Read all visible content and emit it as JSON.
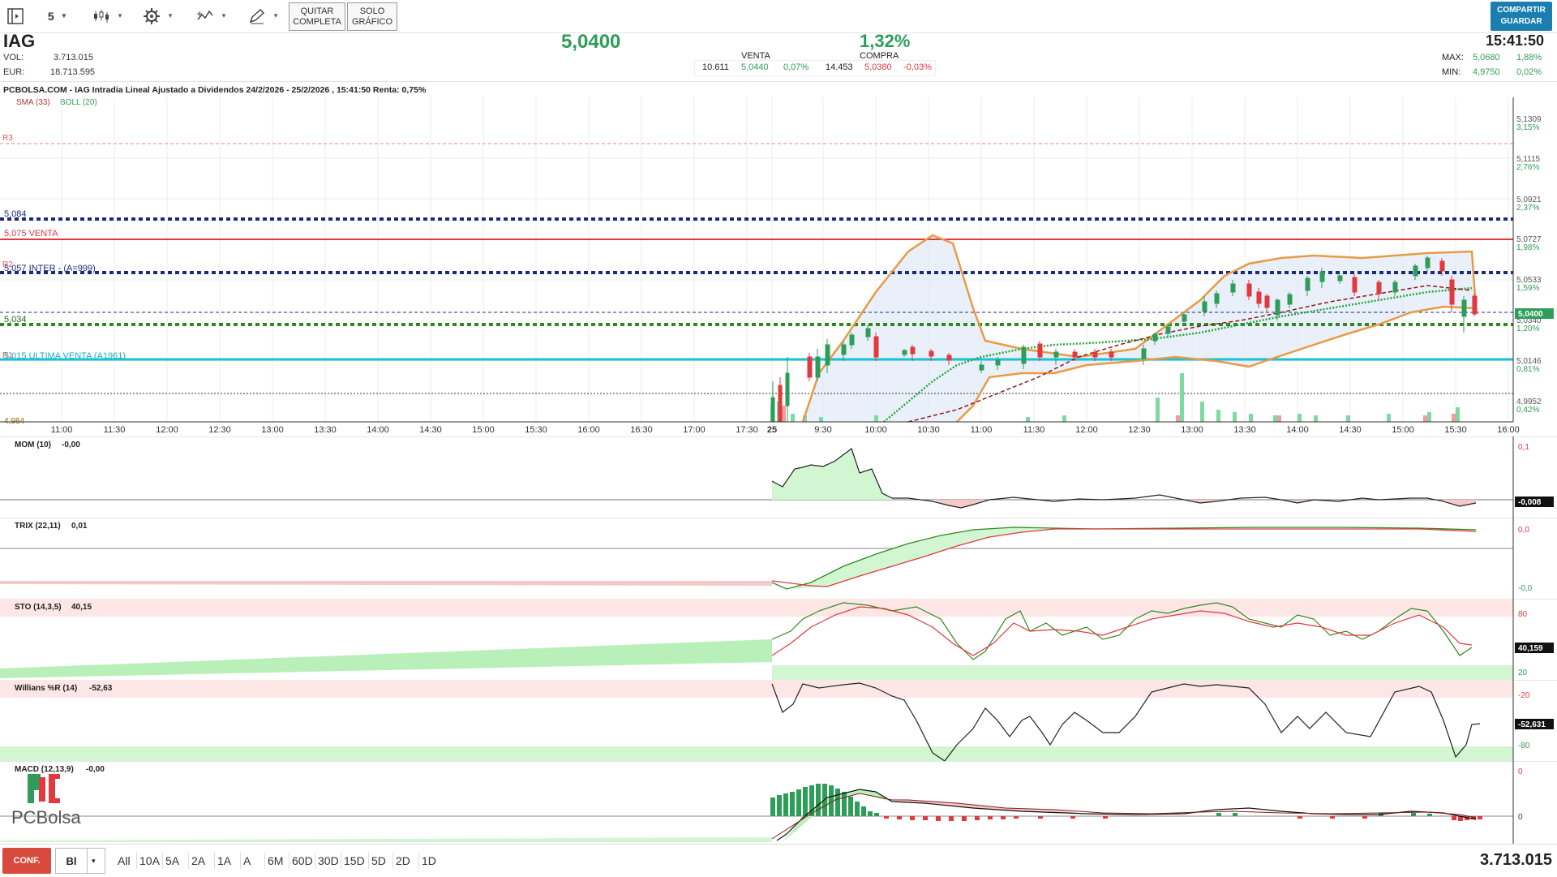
{
  "toolbar": {
    "interval": "5",
    "quit_label": "QUITAR COMPLETA",
    "only_chart_label": "SOLO GRÁFICO",
    "share_label": "COMPARTIR",
    "save_label": "GUARDAR"
  },
  "quote": {
    "ticker": "IAG",
    "vol_label": "VOL:",
    "vol_value": "3.713.015",
    "eur_label": "EUR:",
    "eur_value": "18.713.595",
    "last_price": "5,0400",
    "change_pct": "1,32%",
    "sell_label": "VENTA",
    "sell_qty": "10.611",
    "sell_price": "5,0440",
    "sell_pct": "0,07%",
    "buy_label": "COMPRA",
    "buy_qty": "14.453",
    "buy_price": "5,0380",
    "buy_pct": "-0,03%",
    "time": "15:41:50",
    "max_label": "MAX:",
    "max_value": "5,0680",
    "max_pct": "1,88%",
    "min_label": "MIN:",
    "min_value": "4,9750",
    "min_pct": "0,02%"
  },
  "chart": {
    "title": "PCBOLSA.COM - IAG Intradia Lineal Ajustado a Dividendos 24/2/2026 - 25/2/2026 , 15:41:50 Renta: 0,75%",
    "legend_sma": "SMA (33)",
    "legend_boll": "BOLL (20)",
    "levels": {
      "r3": "R3",
      "r2": "R2",
      "r1": "R1",
      "l5084": "5,084",
      "venta": "5,075   VENTA",
      "inter": "5,057     INTER - (A=999)",
      "l5034": "5,034",
      "ultima": "5,015   ULTIMA VENTA   (A1961)",
      "l4984": "4,984"
    },
    "current_price_tag": "5,0400",
    "y_ticks": [
      {
        "v": "5,1309",
        "p": "3,15%"
      },
      {
        "v": "5,1115",
        "p": "2,76%"
      },
      {
        "v": "5,0921",
        "p": "2,37%"
      },
      {
        "v": "5,0727",
        "p": "1,98%"
      },
      {
        "v": "5,0533",
        "p": "1,59%"
      },
      {
        "v": "5,0340",
        "p": "1,20%"
      },
      {
        "v": "5,0146",
        "p": "0,81%"
      },
      {
        "v": "4,9952",
        "p": "0,42%"
      }
    ],
    "x_ticks": [
      "11:00",
      "11:30",
      "12:00",
      "12:30",
      "13:00",
      "13:30",
      "14:00",
      "14:30",
      "15:00",
      "15:30",
      "16:00",
      "16:30",
      "17:00",
      "17:30",
      "25",
      "9:30",
      "10:00",
      "10:30",
      "11:00",
      "11:30",
      "12:00",
      "12:30",
      "13:00",
      "13:30",
      "14:00",
      "14:30",
      "15:00",
      "15:30",
      "16:00"
    ]
  },
  "indicators": {
    "mom": {
      "label": "MOM (10)",
      "value": "-0,00",
      "tick_top": "0,1",
      "tag": "-0,008"
    },
    "trix": {
      "label": "TRIX (22,11)",
      "value": "0,01",
      "tick_top": "0,0",
      "tick_bottom": "-0,0"
    },
    "sto": {
      "label": "STO (14,3,5)",
      "value": "40,15",
      "tick_80": "80",
      "tick_20": "20",
      "tag": "40,159"
    },
    "willr": {
      "label": "Willians %R (14)",
      "value": "-52,63",
      "tick_20": "-20",
      "tick_80": "-80",
      "tag": "-52,631"
    },
    "macd": {
      "label": "MACD (12,13,9)",
      "value": "-0,00",
      "tick_top": "0",
      "tick_zero": "0"
    }
  },
  "logo": {
    "text": "PCBolsa"
  },
  "bottom": {
    "config_label": "CONF.",
    "mode": "Bl",
    "periods": [
      "All",
      "10A",
      "5A",
      "2A",
      "1A",
      "A",
      "6M",
      "60D",
      "30D",
      "15D",
      "5D",
      "2D",
      "1D"
    ],
    "total_volume": "3.713.015"
  },
  "colors": {
    "green": "#2e9d5a",
    "red": "#e0393e",
    "navy": "#1c2a7a",
    "cyan": "#19c2d6",
    "boll": "#e99a45"
  }
}
